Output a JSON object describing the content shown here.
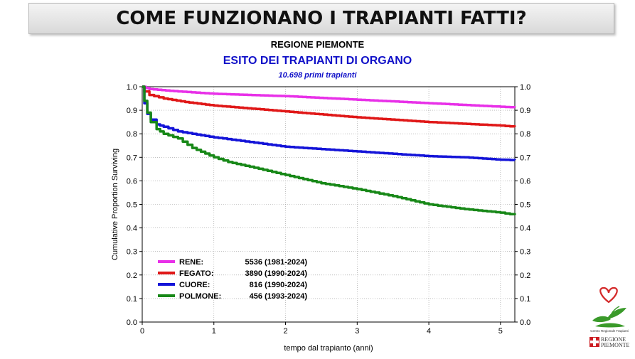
{
  "header": {
    "title": "COME FUNZIONANO I TRAPIANTI FATTI?"
  },
  "chart_data": {
    "type": "line",
    "region": "REGIONE PIEMONTE",
    "title": "ESITO DEI TRAPIANTI DI ORGANO",
    "subtitle": "10.698 primi trapianti",
    "xlabel": "tempo dal trapianto (anni)",
    "ylabel": "Cumulative Proportion Surviving",
    "xlim": [
      0,
      5.2
    ],
    "ylim": [
      0.0,
      1.0
    ],
    "xticks": [
      0,
      1,
      2,
      3,
      4,
      5
    ],
    "yticks": [
      0.0,
      0.1,
      0.2,
      0.3,
      0.4,
      0.5,
      0.6,
      0.7,
      0.8,
      0.9,
      1.0
    ],
    "ytick_labels": [
      "0.0",
      "0.1",
      "0.2",
      "0.3",
      "0.4",
      "0.5",
      "0.6",
      "0.7",
      "0.8",
      "0.9",
      "1.0"
    ],
    "legend_position": "bottom-left",
    "series": [
      {
        "name": "RENE:",
        "detail": "5536 (1981-2024)",
        "color": "#e830e8",
        "x": [
          0,
          0.1,
          0.5,
          1,
          2,
          3,
          4,
          5,
          5.2
        ],
        "y": [
          1.0,
          0.99,
          0.98,
          0.97,
          0.96,
          0.945,
          0.93,
          0.915,
          0.912
        ]
      },
      {
        "name": "FEGATO:",
        "detail": "3890 (1990-2024)",
        "color": "#e01818",
        "x": [
          0,
          0.03,
          0.1,
          0.3,
          0.6,
          1,
          2,
          3,
          4,
          5,
          5.2
        ],
        "y": [
          1.0,
          0.98,
          0.965,
          0.95,
          0.935,
          0.92,
          0.895,
          0.87,
          0.85,
          0.835,
          0.83
        ]
      },
      {
        "name": "CUORE:",
        "detail": "816 (1990-2024)",
        "color": "#1414d8",
        "x": [
          0,
          0.03,
          0.07,
          0.12,
          0.2,
          0.3,
          0.5,
          0.7,
          1,
          1.5,
          2,
          2.5,
          3,
          3.5,
          4,
          4.5,
          5,
          5.2
        ],
        "y": [
          1.0,
          0.93,
          0.885,
          0.86,
          0.84,
          0.83,
          0.81,
          0.8,
          0.785,
          0.765,
          0.745,
          0.735,
          0.725,
          0.715,
          0.705,
          0.7,
          0.69,
          0.688
        ]
      },
      {
        "name": "POLMONE:",
        "detail": "456 (1993-2024)",
        "color": "#188818",
        "x": [
          0,
          0.03,
          0.07,
          0.12,
          0.2,
          0.3,
          0.5,
          0.7,
          1,
          1.2,
          1.5,
          2,
          2.5,
          3,
          3.5,
          4,
          4.5,
          5,
          5.2
        ],
        "y": [
          1.0,
          0.94,
          0.89,
          0.85,
          0.82,
          0.8,
          0.78,
          0.74,
          0.7,
          0.68,
          0.66,
          0.625,
          0.59,
          0.565,
          0.535,
          0.5,
          0.48,
          0.465,
          0.455
        ]
      }
    ]
  },
  "logo": {
    "caption": "Centro Regionale Trapianti",
    "region_line1": "REGIONE",
    "region_line2": "PIEMONTE"
  }
}
